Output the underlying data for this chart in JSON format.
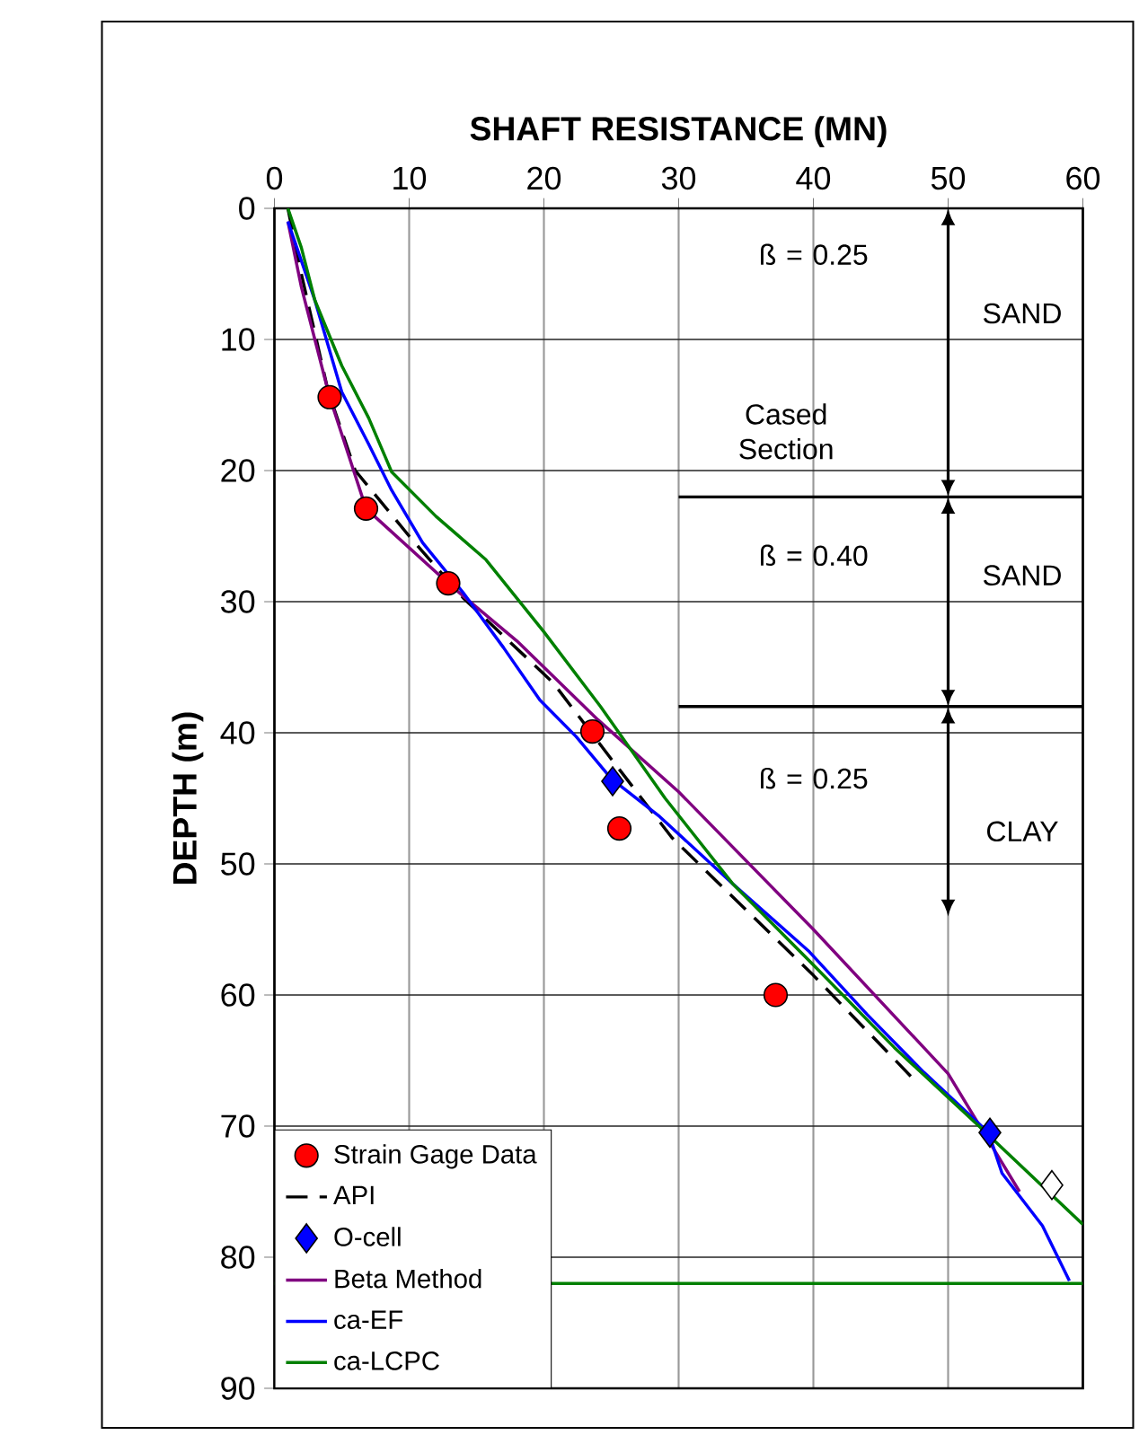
{
  "chart_data": {
    "type": "line",
    "xlabel": "SHAFT RESISTANCE (MN)",
    "ylabel": "DEPTH (m)",
    "xlim": [
      0,
      60
    ],
    "ylim": [
      90,
      0
    ],
    "xticks": [
      0,
      10,
      20,
      30,
      40,
      50,
      60
    ],
    "yticks": [
      0,
      10,
      20,
      30,
      40,
      50,
      60,
      70,
      80,
      90
    ],
    "grid": true,
    "legend": "bottom left",
    "series": [
      {
        "name": "Strain Gage Data",
        "type": "scatter",
        "marker": "circle",
        "color": "#ff0000",
        "x": [
          4.1,
          6.8,
          12.9,
          23.6,
          25.6,
          37.2
        ],
        "values": [
          14.4,
          22.9,
          28.6,
          39.9,
          47.3,
          60
        ]
      },
      {
        "name": "API",
        "line_style": "dashed",
        "color": "#000000",
        "x": [
          1,
          2,
          4,
          6,
          10,
          14,
          20.7,
          25,
          29.5,
          35,
          40,
          47.7
        ],
        "values": [
          0,
          5,
          14,
          20,
          25,
          29.7,
          36.2,
          42,
          48,
          53.5,
          58.5,
          66.7
        ]
      },
      {
        "name": "O-cell",
        "type": "scatter",
        "marker": "diamond",
        "color": "#0000ff",
        "colors": [
          "#0000ff",
          "#0000ff",
          "#ffffff"
        ],
        "x": [
          25.1,
          53.1,
          57.7
        ],
        "values": [
          43.7,
          70.5,
          74.5
        ]
      },
      {
        "name": "Beta Method",
        "color": "#800080",
        "x": [
          1,
          2,
          4.1,
          6.8,
          12.9,
          18,
          24,
          30,
          40,
          50,
          55.3
        ],
        "values": [
          1,
          6,
          14.4,
          22.9,
          28.6,
          33,
          39,
          44.5,
          55,
          66,
          75
        ]
      },
      {
        "name": "ca-EF",
        "color": "#0000ff",
        "x": [
          1,
          3,
          5,
          7,
          8.7,
          11,
          14,
          17,
          19.7,
          22.4,
          25,
          28.6,
          34,
          39.7,
          44,
          48.2,
          53,
          54,
          57,
          59
        ],
        "values": [
          1,
          7,
          14,
          18,
          21.5,
          25.5,
          29.3,
          33.5,
          37.5,
          40.3,
          43.5,
          46.4,
          51.5,
          56.7,
          61.5,
          65.9,
          70.5,
          73.6,
          77.6,
          81.8
        ]
      },
      {
        "name": "ca-LCPC",
        "color": "#008000",
        "x": [
          1,
          2,
          3,
          5,
          7,
          8.7,
          12,
          15.7,
          20,
          24.2,
          29,
          34,
          39.7,
          46,
          52.7,
          60
        ],
        "values": [
          0,
          3,
          7,
          12,
          16,
          20.1,
          23.5,
          26.8,
          32.3,
          38,
          45,
          51.5,
          57.4,
          64,
          70.4,
          77.5
        ]
      },
      {
        "color": "#000000",
        "x": [
          30,
          60
        ],
        "values": [
          22,
          22
        ]
      },
      {
        "color": "#000000",
        "x": [
          30,
          60
        ],
        "values": [
          38,
          38
        ]
      }
    ],
    "ref_lines": [
      {
        "axis": "y",
        "value": 82,
        "color": "#008000"
      }
    ],
    "annotations": [
      "ß = 0.25",
      "SAND",
      "Cased Section",
      "ß = 0.40",
      "SAND",
      "ß = 0.25",
      "CLAY"
    ]
  }
}
